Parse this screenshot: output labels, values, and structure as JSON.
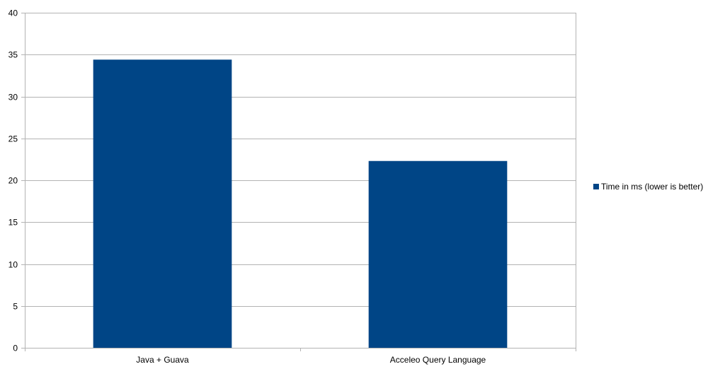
{
  "chart_data": {
    "type": "bar",
    "categories": [
      "Java + Guava",
      "Acceleo Query Language"
    ],
    "series": [
      {
        "name": "Time in ms (lower is better)",
        "values": [
          34.4,
          22.3
        ],
        "color": "#004586"
      }
    ],
    "ylim": [
      0,
      40
    ],
    "yticks": [
      0,
      5,
      10,
      15,
      20,
      25,
      30,
      35,
      40
    ],
    "grid": true,
    "legend": "right",
    "title": "",
    "xlabel": "",
    "ylabel": ""
  }
}
